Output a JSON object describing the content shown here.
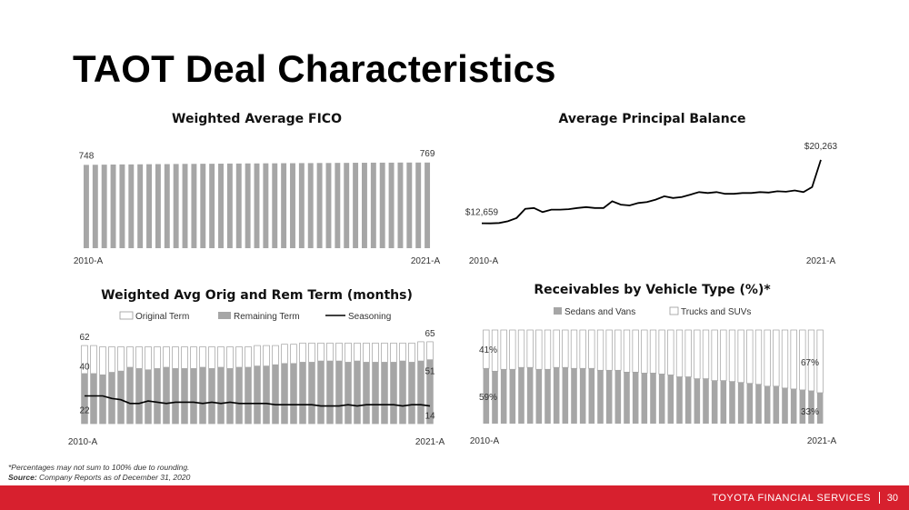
{
  "title": "TAOT Deal Characteristics",
  "footnote": {
    "note": "*Percentages may not sum to 100% due to rounding.",
    "source_label": "Source:",
    "source_text": "Company Reports as of December 31, 2020"
  },
  "footer": {
    "brand": "TOYOTA FINANCIAL SERVICES",
    "page": "30"
  },
  "chart_data": [
    {
      "id": "fico",
      "type": "bar",
      "title": "Weighted Average FICO",
      "x_start_label": "2010-A",
      "x_end_label": "2021-A",
      "first_label": "748",
      "last_label": "769",
      "ylim": [
        0,
        800
      ],
      "values": [
        748,
        749,
        750,
        751,
        752,
        752,
        753,
        754,
        755,
        755,
        756,
        757,
        757,
        758,
        758,
        759,
        760,
        760,
        761,
        761,
        762,
        762,
        763,
        763,
        764,
        764,
        765,
        765,
        766,
        766,
        767,
        767,
        768,
        768,
        768,
        769,
        769,
        769,
        769
      ]
    },
    {
      "id": "principal",
      "type": "line",
      "title": "Average Principal Balance",
      "x_start_label": "2010-A",
      "x_end_label": "2021-A",
      "first_label": "$12,659",
      "last_label": "$20,263",
      "ylim": [
        10000,
        22000
      ],
      "values": [
        12659,
        12650,
        12700,
        12900,
        13300,
        14400,
        14500,
        14000,
        14300,
        14300,
        14350,
        14500,
        14600,
        14500,
        14500,
        15300,
        14900,
        14800,
        15100,
        15200,
        15500,
        15900,
        15700,
        15800,
        16100,
        16400,
        16300,
        16400,
        16200,
        16200,
        16300,
        16300,
        16400,
        16350,
        16500,
        16450,
        16600,
        16400,
        17000,
        20263
      ]
    },
    {
      "id": "term",
      "type": "bar",
      "title": "Weighted Avg Orig and Rem Term (months)",
      "legend": [
        "Original Term",
        "Remaining Term",
        "Seasoning"
      ],
      "x_start_label": "2010-A",
      "x_end_label": "2021-A",
      "labels": {
        "orig_first": "62",
        "orig_last": "65",
        "rem_first": "40",
        "rem_last": "51",
        "seas_first": "22",
        "seas_last": "14"
      },
      "ylim": [
        0,
        70
      ],
      "original": [
        62,
        62,
        61,
        61,
        61,
        61,
        61,
        61,
        61,
        61,
        61,
        61,
        61,
        61,
        61,
        61,
        61,
        61,
        61,
        62,
        62,
        62,
        63,
        63,
        64,
        64,
        64,
        64,
        64,
        64,
        64,
        64,
        64,
        64,
        64,
        64,
        64,
        65,
        65
      ],
      "remaining": [
        40,
        40,
        39,
        41,
        42,
        45,
        44,
        43,
        44,
        45,
        44,
        44,
        44,
        45,
        44,
        45,
        44,
        45,
        45,
        46,
        46,
        47,
        48,
        48,
        49,
        49,
        50,
        50,
        50,
        49,
        50,
        49,
        49,
        49,
        49,
        50,
        49,
        50,
        51
      ],
      "seasoning": [
        22,
        22,
        22,
        20,
        19,
        16,
        16,
        18,
        17,
        16,
        17,
        17,
        17,
        16,
        17,
        16,
        17,
        16,
        16,
        16,
        16,
        15,
        15,
        15,
        15,
        15,
        14,
        14,
        14,
        15,
        14,
        15,
        15,
        15,
        15,
        14,
        15,
        15,
        14
      ]
    },
    {
      "id": "vehicle",
      "type": "bar",
      "title": "Receivables by Vehicle Type (%)*",
      "legend": [
        "Sedans and Vans",
        "Trucks and SUVs"
      ],
      "x_start_label": "2010-A",
      "x_end_label": "2021-A",
      "labels": {
        "sedan_first": "59%",
        "sedan_last": "33%",
        "truck_first": "41%",
        "truck_last": "67%"
      },
      "ylim": [
        0,
        100
      ],
      "sedans": [
        59,
        56,
        58,
        58,
        60,
        60,
        58,
        58,
        60,
        60,
        59,
        59,
        59,
        57,
        57,
        57,
        55,
        55,
        54,
        54,
        53,
        52,
        50,
        50,
        48,
        48,
        46,
        46,
        45,
        44,
        43,
        42,
        40,
        40,
        38,
        37,
        36,
        35,
        33
      ]
    }
  ]
}
